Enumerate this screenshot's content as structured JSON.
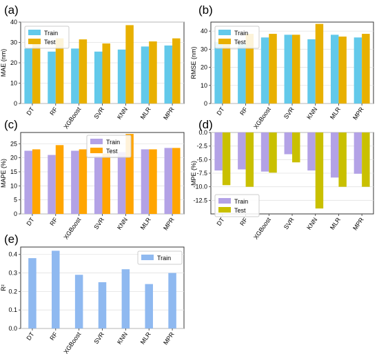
{
  "chart_data": [
    {
      "type": "bar",
      "panel": "(a)",
      "ylabel": "MAE (nm)",
      "ylim": [
        0,
        40
      ],
      "yticks": [
        "0",
        "10",
        "20",
        "30",
        "40"
      ],
      "categories": [
        "DT",
        "RF",
        "XGBoost",
        "SVR",
        "KNN",
        "MLR",
        "MPR"
      ],
      "legend_position": "top-right",
      "series": [
        {
          "name": "Train",
          "values": [
            27,
            25.5,
            27,
            25.5,
            26.5,
            28,
            28.5
          ]
        },
        {
          "name": "Test",
          "values": [
            29.5,
            32,
            31.5,
            29.5,
            38.5,
            30.5,
            32
          ]
        }
      ],
      "colors": [
        "#62c9ea",
        "#e8b000"
      ]
    },
    {
      "type": "bar",
      "panel": "(b)",
      "ylabel": "RMSE (nm)",
      "ylim": [
        0,
        45
      ],
      "yticks": [
        "0",
        "10",
        "20",
        "30",
        "40"
      ],
      "categories": [
        "DT",
        "RF",
        "XGBoost",
        "SVR",
        "KNN",
        "MLR",
        "MPR"
      ],
      "legend_position": "top-left",
      "series": [
        {
          "name": "Train",
          "values": [
            34,
            33,
            36.5,
            38,
            35.5,
            38,
            36.5
          ]
        },
        {
          "name": "Test",
          "values": [
            34,
            38.5,
            38.5,
            38,
            44,
            37,
            38.5
          ]
        }
      ],
      "colors": [
        "#62c9ea",
        "#e8b000"
      ]
    },
    {
      "type": "bar",
      "panel": "(c)",
      "ylabel": "MAPE (%)",
      "ylim": [
        0,
        29
      ],
      "yticks": [
        "0",
        "5",
        "10",
        "15",
        "20",
        "25"
      ],
      "categories": [
        "DT",
        "RF",
        "XGBoost",
        "SVR",
        "KNN",
        "MLR",
        "MPR"
      ],
      "legend_position": "top-center",
      "series": [
        {
          "name": "Train",
          "values": [
            22.5,
            21,
            22.5,
            20.5,
            22,
            23,
            23.5
          ]
        },
        {
          "name": "Test",
          "values": [
            23,
            24.5,
            23,
            21.5,
            28.5,
            23,
            23.5
          ]
        }
      ],
      "colors": [
        "#b3a2e6",
        "#ffa500"
      ]
    },
    {
      "type": "bar",
      "panel": "(d)",
      "ylabel": "MPE (%)",
      "ylim": [
        -15,
        0
      ],
      "yticks": [
        "0.0",
        "-2.5",
        "-5.0",
        "-7.5",
        "-10.0",
        "-12.5"
      ],
      "categories": [
        "DT",
        "RF",
        "XGBoost",
        "SVR",
        "KNN",
        "MLR",
        "MPR"
      ],
      "legend_position": "bottom-left",
      "series": [
        {
          "name": "Train",
          "values": [
            -7,
            -6.8,
            -7.2,
            -4,
            -7,
            -8.3,
            -7.6
          ]
        },
        {
          "name": "Test",
          "values": [
            -9.7,
            -10,
            -7.4,
            -5.5,
            -14,
            -10,
            -10
          ]
        }
      ],
      "colors": [
        "#b3a2e6",
        "#c9c000"
      ]
    },
    {
      "type": "bar",
      "panel": "(e)",
      "ylabel": "R²",
      "ylim": [
        0,
        0.44
      ],
      "yticks": [
        "0.0",
        "0.1",
        "0.2",
        "0.3",
        "0.4"
      ],
      "categories": [
        "DT",
        "RF",
        "XGBoost",
        "SVR",
        "KNN",
        "MLR",
        "MPR"
      ],
      "legend_position": "top-right",
      "series": [
        {
          "name": "Train",
          "values": [
            0.38,
            0.42,
            0.29,
            0.25,
            0.32,
            0.24,
            0.3
          ]
        }
      ],
      "colors": [
        "#8fb9f0"
      ]
    }
  ]
}
